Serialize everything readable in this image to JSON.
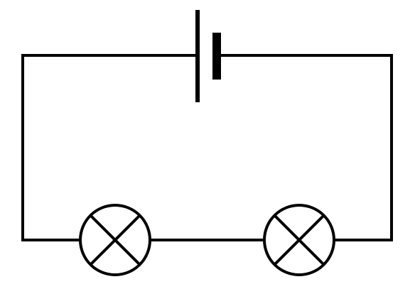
{
  "diagram": {
    "type": "series-circuit",
    "components": [
      {
        "kind": "battery-cell",
        "name": "battery"
      },
      {
        "kind": "lamp",
        "name": "lamp-left"
      },
      {
        "kind": "lamp",
        "name": "lamp-right"
      }
    ],
    "colors": {
      "stroke": "#000000",
      "background": "#ffffff"
    }
  }
}
